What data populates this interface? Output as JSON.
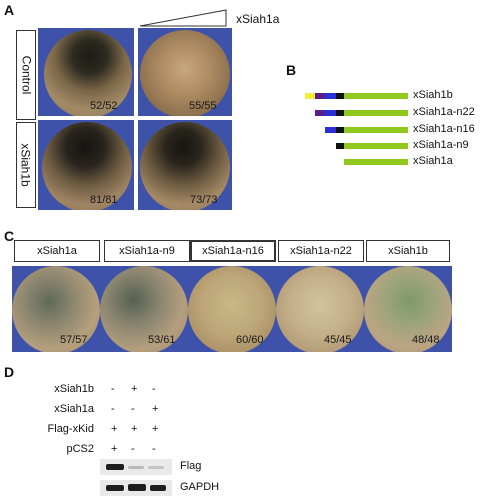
{
  "panels": {
    "a": {
      "label": "A",
      "gradient_label": "xSiah1a",
      "row_labels": [
        "Control",
        "xSiah1b"
      ],
      "counts": [
        "52/52",
        "55/55",
        "81/81",
        "73/73"
      ]
    },
    "b": {
      "label": "B",
      "constructs": [
        "xSiah1b",
        "xSiah1a-n22",
        "xSiah1a-n16",
        "xSiah1a-n9",
        "xSiah1a"
      ],
      "colors": {
        "yellow": "#f4ee3a",
        "purple": "#5a1f86",
        "blue": "#2b2fd6",
        "black": "#111111",
        "green": "#8fc81e"
      }
    },
    "c": {
      "label": "C",
      "headers": [
        "xSiah1a",
        "xSiah1a-n9",
        "xSiah1a-n16",
        "xSiah1a-n22",
        "xSiah1b"
      ],
      "counts": [
        "57/57",
        "53/61",
        "60/60",
        "45/45",
        "48/48"
      ]
    },
    "d": {
      "label": "D",
      "rows": [
        {
          "name": "xSiah1b",
          "vals": [
            "-",
            "+",
            "-"
          ]
        },
        {
          "name": "xSiah1a",
          "vals": [
            "-",
            "-",
            "+"
          ]
        },
        {
          "name": "Flag-xKid",
          "vals": [
            "+",
            "+",
            "+"
          ]
        },
        {
          "name": "pCS2",
          "vals": [
            "+",
            "-",
            "-"
          ]
        }
      ],
      "blots": [
        "Flag",
        "GAPDH"
      ]
    }
  }
}
